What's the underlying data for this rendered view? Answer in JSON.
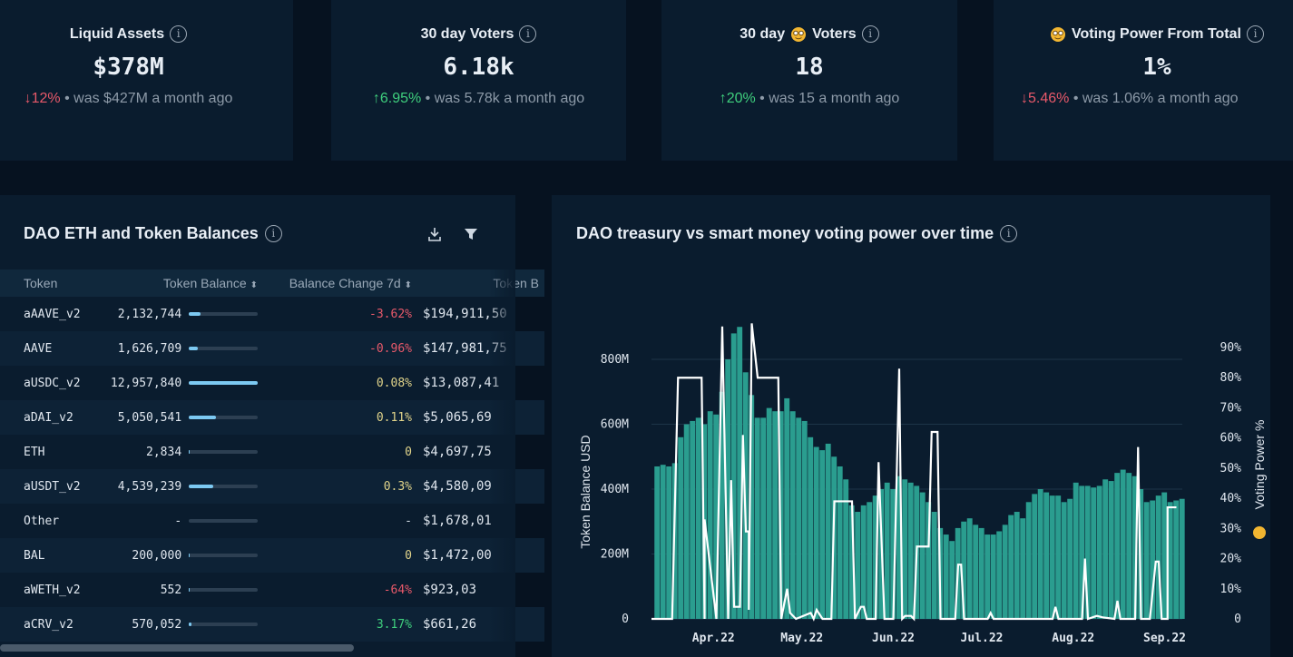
{
  "cards": [
    {
      "title": "Liquid Assets",
      "emoji": false,
      "value": "$378M",
      "change": "12%",
      "dir": "down",
      "note": " • was $427M a month ago"
    },
    {
      "title": "30 day Voters",
      "emoji": false,
      "value": "6.18k",
      "change": "6.95%",
      "dir": "up",
      "note": " • was 5.78k a month ago"
    },
    {
      "title_pre": "30 day",
      "title": "Voters",
      "emoji": true,
      "value": "18",
      "change": "20%",
      "dir": "up",
      "note": " • was 15 a month ago"
    },
    {
      "title": "Voting Power From Total",
      "emoji": true,
      "emoji_first": true,
      "value": "1%",
      "change": "5.46%",
      "dir": "down",
      "note": " • was 1.06% a month ago"
    }
  ],
  "table_panel": {
    "title": "DAO ETH and Token Balances",
    "columns": [
      "Token",
      "Token Balance",
      "Balance Change 7d",
      "Token B"
    ],
    "rows": [
      {
        "token": "aAAVE_v2",
        "balance": "2,132,744",
        "change": "-3.62%",
        "usd": "$194,911,50"
      },
      {
        "token": "AAVE",
        "balance": "1,626,709",
        "change": "-0.96%",
        "usd": "$147,981,75"
      },
      {
        "token": "aUSDC_v2",
        "balance": "12,957,840",
        "change": "0.08%",
        "usd": "$13,087,41"
      },
      {
        "token": "aDAI_v2",
        "balance": "5,050,541",
        "change": "0.11%",
        "usd": "$5,065,69"
      },
      {
        "token": "ETH",
        "balance": "2,834",
        "change": "0",
        "usd": "$4,697,75"
      },
      {
        "token": "aUSDT_v2",
        "balance": "4,539,239",
        "change": "0.3%",
        "usd": "$4,580,09"
      },
      {
        "token": "Other",
        "balance": "-",
        "change": "-",
        "usd": "$1,678,01"
      },
      {
        "token": "BAL",
        "balance": "200,000",
        "change": "0",
        "usd": "$1,472,00"
      },
      {
        "token": "aWETH_v2",
        "balance": "552",
        "change": "-64%",
        "usd": "$923,03"
      },
      {
        "token": "aCRV_v2",
        "balance": "570,052",
        "change": "3.17%",
        "usd": "$661,26"
      }
    ]
  },
  "colors": {
    "negative": "#e8596a",
    "neutral": "#e0d38a",
    "positive": "#3fcf7d",
    "bars": "#2a9d8f",
    "line": "#ffffff",
    "accent": "#7cc9f2"
  },
  "chart_data": {
    "type": "bar+line",
    "title": "DAO treasury vs smart money voting power over time",
    "ylabel": "Token Balance USD",
    "y2label": "Voting Power %",
    "ylim": [
      0,
      900
    ],
    "y_ticks": [
      "0",
      "200M",
      "400M",
      "600M",
      "800M"
    ],
    "y2lim": [
      0,
      100
    ],
    "y2_ticks": [
      "0",
      "10%",
      "20%",
      "30%",
      "40%",
      "50%",
      "60%",
      "70%",
      "80%",
      "90%"
    ],
    "x_ticks": [
      {
        "date": "2022-04-01",
        "label": "Apr.22"
      },
      {
        "date": "2022-05-01",
        "label": "May.22"
      },
      {
        "date": "2022-06-01",
        "label": "Jun.22"
      },
      {
        "date": "2022-07-01",
        "label": "Jul.22"
      },
      {
        "date": "2022-08-01",
        "label": "Aug.22"
      },
      {
        "date": "2022-09-01",
        "label": "Sep.22"
      }
    ],
    "grid": true,
    "bar_series": {
      "start": "2022-03-12",
      "step_days": 2,
      "unit": "M USD",
      "values": [
        470,
        475,
        470,
        480,
        560,
        600,
        610,
        620,
        600,
        640,
        630,
        700,
        800,
        880,
        900,
        760,
        690,
        620,
        620,
        650,
        640,
        640,
        680,
        640,
        620,
        610,
        560,
        530,
        520,
        540,
        500,
        470,
        430,
        350,
        330,
        350,
        360,
        380,
        400,
        420,
        400,
        440,
        430,
        420,
        410,
        390,
        360,
        330,
        280,
        260,
        240,
        280,
        300,
        310,
        290,
        280,
        260,
        260,
        270,
        290,
        320,
        330,
        310,
        360,
        385,
        400,
        390,
        380,
        380,
        360,
        370,
        420,
        410,
        410,
        405,
        410,
        430,
        425,
        450,
        460,
        450,
        440,
        400,
        360,
        365,
        380,
        390,
        360,
        365,
        370
      ]
    },
    "line_series": [
      [
        "2022-03-11",
        0
      ],
      [
        "2022-03-18",
        0
      ],
      [
        "2022-03-20",
        80
      ],
      [
        "2022-03-28",
        80
      ],
      [
        "2022-03-29",
        0
      ],
      [
        "2022-03-29",
        33
      ],
      [
        "2022-04-02",
        0
      ],
      [
        "2022-04-04",
        97
      ],
      [
        "2022-04-06",
        0
      ],
      [
        "2022-04-07",
        46
      ],
      [
        "2022-04-08",
        4
      ],
      [
        "2022-04-10",
        4
      ],
      [
        "2022-04-11",
        61
      ],
      [
        "2022-04-12",
        29
      ],
      [
        "2022-04-13",
        29
      ],
      [
        "2022-04-13",
        3
      ],
      [
        "2022-04-14",
        98
      ],
      [
        "2022-04-16",
        80
      ],
      [
        "2022-04-23",
        80
      ],
      [
        "2022-04-24",
        0
      ],
      [
        "2022-04-26",
        10
      ],
      [
        "2022-04-27",
        2
      ],
      [
        "2022-04-29",
        0
      ],
      [
        "2022-05-04",
        2
      ],
      [
        "2022-05-05",
        0
      ],
      [
        "2022-05-06",
        3
      ],
      [
        "2022-05-08",
        0
      ],
      [
        "2022-05-11",
        0
      ],
      [
        "2022-05-12",
        39
      ],
      [
        "2022-05-18",
        39
      ],
      [
        "2022-05-19",
        0
      ],
      [
        "2022-05-21",
        4
      ],
      [
        "2022-05-22",
        4
      ],
      [
        "2022-05-23",
        0
      ],
      [
        "2022-05-26",
        0
      ],
      [
        "2022-05-27",
        52
      ],
      [
        "2022-05-29",
        0
      ],
      [
        "2022-06-01",
        0
      ],
      [
        "2022-06-03",
        83
      ],
      [
        "2022-06-04",
        0
      ],
      [
        "2022-06-05",
        1
      ],
      [
        "2022-06-07",
        1
      ],
      [
        "2022-06-08",
        0
      ],
      [
        "2022-06-09",
        24
      ],
      [
        "2022-06-13",
        24
      ],
      [
        "2022-06-14",
        62
      ],
      [
        "2022-06-16",
        62
      ],
      [
        "2022-06-17",
        0
      ],
      [
        "2022-06-22",
        0
      ],
      [
        "2022-06-23",
        18
      ],
      [
        "2022-06-24",
        18
      ],
      [
        "2022-06-25",
        0
      ],
      [
        "2022-07-03",
        0
      ],
      [
        "2022-07-04",
        2
      ],
      [
        "2022-07-05",
        0
      ],
      [
        "2022-07-25",
        0
      ],
      [
        "2022-07-26",
        4
      ],
      [
        "2022-07-27",
        0
      ],
      [
        "2022-08-04",
        0
      ],
      [
        "2022-08-05",
        20
      ],
      [
        "2022-08-06",
        0
      ],
      [
        "2022-08-09",
        1
      ],
      [
        "2022-08-11",
        0.5
      ],
      [
        "2022-08-15",
        0
      ],
      [
        "2022-08-16",
        6
      ],
      [
        "2022-08-17",
        0
      ],
      [
        "2022-08-22",
        0
      ],
      [
        "2022-08-23",
        57
      ],
      [
        "2022-08-24",
        0
      ],
      [
        "2022-08-27",
        0
      ],
      [
        "2022-08-29",
        19
      ],
      [
        "2022-08-30",
        19
      ],
      [
        "2022-08-31",
        0
      ],
      [
        "2022-09-02",
        0
      ],
      [
        "2022-09-02",
        37
      ],
      [
        "2022-09-05",
        37
      ]
    ]
  }
}
